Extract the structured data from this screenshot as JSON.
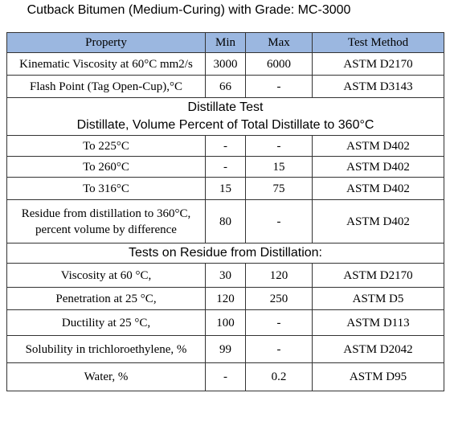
{
  "title": "Cutback Bitumen (Medium-Curing) with Grade: MC-3000",
  "table": {
    "header": [
      "Property",
      "Min",
      "Max",
      "Test Method"
    ],
    "rows": [
      {
        "cells": [
          "Kinematic Viscosity at 60°C mm2/s",
          "3000",
          "6000",
          "ASTM D2170"
        ]
      },
      {
        "cells": [
          "Flash Point (Tag Open-Cup),°C",
          "66",
          "-",
          "ASTM D3143"
        ]
      },
      {
        "section": [
          "Distillate Test",
          "Distillate, Volume Percent of Total Distillate to 360°C"
        ]
      },
      {
        "cells": [
          "To 225°C",
          "-",
          "-",
          "ASTM D402"
        ]
      },
      {
        "cells": [
          "To 260°C",
          "-",
          "15",
          "ASTM D402"
        ]
      },
      {
        "cells": [
          "To 316°C",
          "15",
          "75",
          "ASTM D402"
        ]
      },
      {
        "cells": [
          "Residue from distillation to 360°C, percent volume by difference",
          "80",
          "-",
          "ASTM D402"
        ]
      },
      {
        "section": [
          "Tests on Residue from Distillation:"
        ]
      },
      {
        "cells": [
          "Viscosity at 60 °C,",
          "30",
          "120",
          "ASTM D2170"
        ]
      },
      {
        "cells": [
          "Penetration at 25 °C,",
          "120",
          "250",
          "ASTM D5"
        ]
      },
      {
        "cells": [
          "Ductility at 25 °C,",
          "100",
          "-",
          "ASTM D113"
        ]
      },
      {
        "cells": [
          "Solubility in trichloroethylene, %",
          "99",
          "-",
          "ASTM D2042"
        ]
      },
      {
        "cells": [
          "Water, %",
          "-",
          "0.2",
          "ASTM D95"
        ]
      }
    ]
  }
}
